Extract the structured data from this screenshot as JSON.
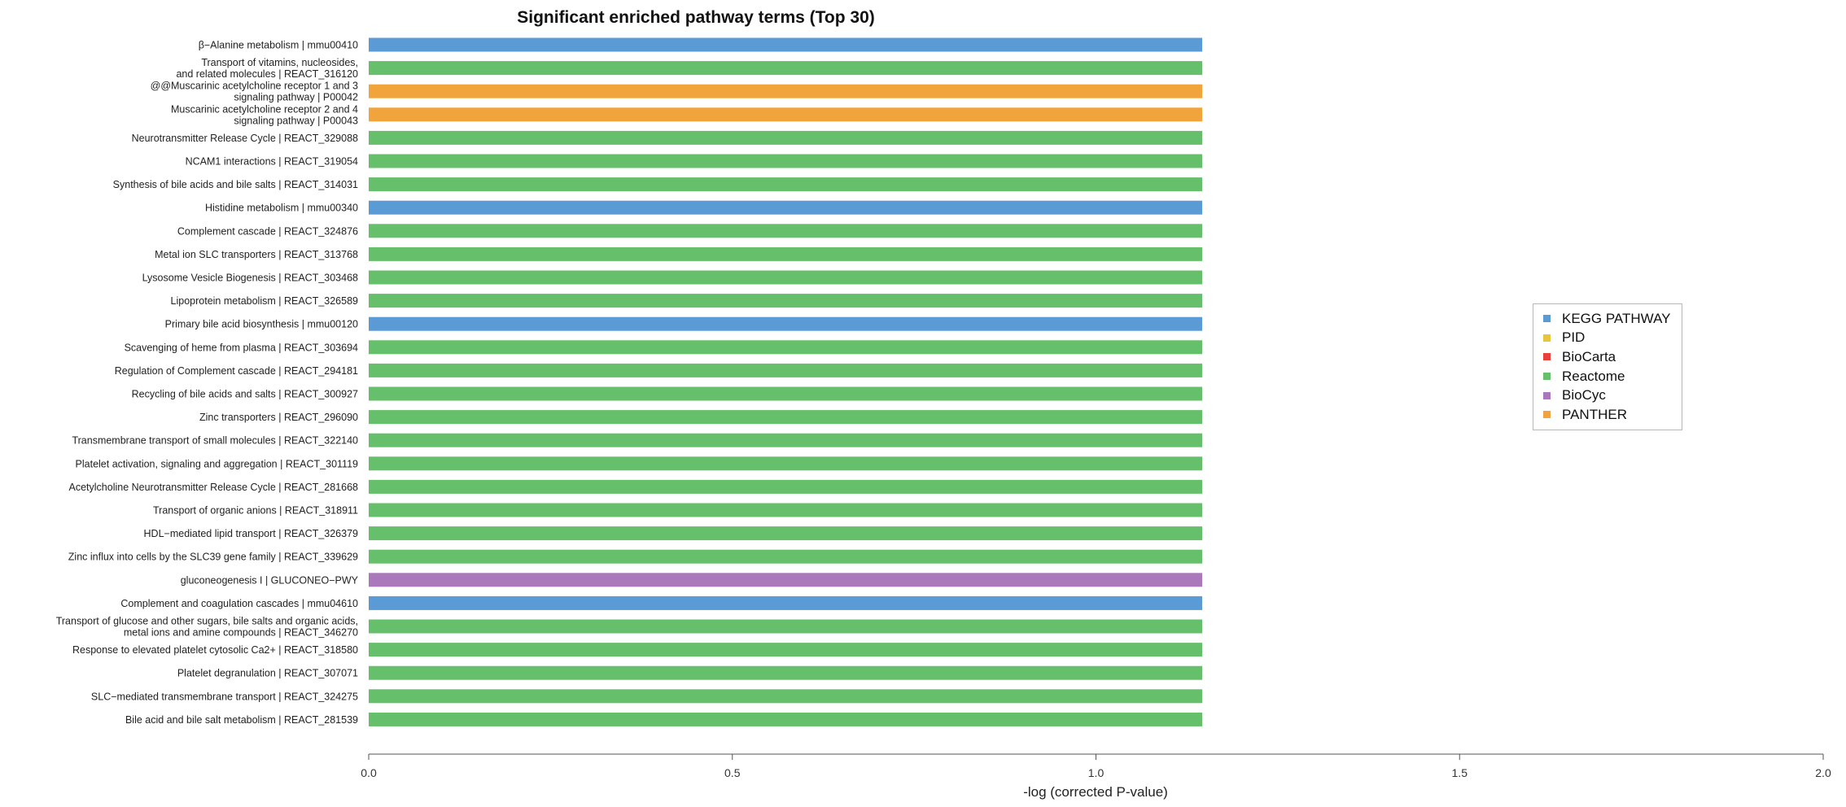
{
  "chart_data": {
    "type": "bar",
    "orientation": "horizontal",
    "title": "Significant enriched pathway terms (Top 30)",
    "xlabel": "-log (corrected P-value)",
    "ylabel": "",
    "xlim": [
      0,
      2.0
    ],
    "xticks": [
      "0.0",
      "0.5",
      "1.0",
      "1.5",
      "2.0"
    ],
    "grid": false,
    "legend_position": "right",
    "sources": [
      {
        "name": "KEGG PATHWAY",
        "color": "#5b9bd5"
      },
      {
        "name": "PID",
        "color": "#e8c53a"
      },
      {
        "name": "BioCarta",
        "color": "#e8413c"
      },
      {
        "name": "Reactome",
        "color": "#66bf6a"
      },
      {
        "name": "BioCyc",
        "color": "#a979bb"
      },
      {
        "name": "PANTHER",
        "color": "#f2a43c"
      }
    ],
    "bars": [
      {
        "label": [
          "β−Alanine metabolism | mmu00410"
        ],
        "source": "KEGG PATHWAY",
        "value": 1.146
      },
      {
        "label": [
          "Transport of vitamins, nucleosides,",
          "and related molecules | REACT_316120"
        ],
        "source": "Reactome",
        "value": 1.146
      },
      {
        "label": [
          "@@Muscarinic acetylcholine receptor 1 and 3",
          "signaling pathway | P00042"
        ],
        "source": "PANTHER",
        "value": 1.146
      },
      {
        "label": [
          "Muscarinic acetylcholine receptor 2 and 4",
          "signaling pathway | P00043"
        ],
        "source": "PANTHER",
        "value": 1.146
      },
      {
        "label": [
          "Neurotransmitter Release Cycle | REACT_329088"
        ],
        "source": "Reactome",
        "value": 1.146
      },
      {
        "label": [
          "NCAM1 interactions | REACT_319054"
        ],
        "source": "Reactome",
        "value": 1.146
      },
      {
        "label": [
          "Synthesis of bile acids and bile salts | REACT_314031"
        ],
        "source": "Reactome",
        "value": 1.146
      },
      {
        "label": [
          "Histidine metabolism | mmu00340"
        ],
        "source": "KEGG PATHWAY",
        "value": 1.146
      },
      {
        "label": [
          "Complement cascade | REACT_324876"
        ],
        "source": "Reactome",
        "value": 1.146
      },
      {
        "label": [
          "Metal ion SLC transporters | REACT_313768"
        ],
        "source": "Reactome",
        "value": 1.146
      },
      {
        "label": [
          "Lysosome Vesicle Biogenesis | REACT_303468"
        ],
        "source": "Reactome",
        "value": 1.146
      },
      {
        "label": [
          "Lipoprotein metabolism | REACT_326589"
        ],
        "source": "Reactome",
        "value": 1.146
      },
      {
        "label": [
          "Primary bile acid biosynthesis | mmu00120"
        ],
        "source": "KEGG PATHWAY",
        "value": 1.146
      },
      {
        "label": [
          "Scavenging of heme from plasma | REACT_303694"
        ],
        "source": "Reactome",
        "value": 1.146
      },
      {
        "label": [
          "Regulation of Complement cascade | REACT_294181"
        ],
        "source": "Reactome",
        "value": 1.146
      },
      {
        "label": [
          "Recycling of bile acids and salts | REACT_300927"
        ],
        "source": "Reactome",
        "value": 1.146
      },
      {
        "label": [
          "Zinc transporters | REACT_296090"
        ],
        "source": "Reactome",
        "value": 1.146
      },
      {
        "label": [
          "Transmembrane transport of small molecules | REACT_322140"
        ],
        "source": "Reactome",
        "value": 1.146
      },
      {
        "label": [
          "Platelet activation, signaling and aggregation | REACT_301119"
        ],
        "source": "Reactome",
        "value": 1.146
      },
      {
        "label": [
          "Acetylcholine Neurotransmitter Release Cycle | REACT_281668"
        ],
        "source": "Reactome",
        "value": 1.146
      },
      {
        "label": [
          "Transport of organic anions | REACT_318911"
        ],
        "source": "Reactome",
        "value": 1.146
      },
      {
        "label": [
          "HDL−mediated lipid transport | REACT_326379"
        ],
        "source": "Reactome",
        "value": 1.146
      },
      {
        "label": [
          "Zinc influx into cells by the SLC39 gene family | REACT_339629"
        ],
        "source": "Reactome",
        "value": 1.146
      },
      {
        "label": [
          "gluconeogenesis I | GLUCONEO−PWY"
        ],
        "source": "BioCyc",
        "value": 1.146
      },
      {
        "label": [
          "Complement and coagulation cascades | mmu04610"
        ],
        "source": "KEGG PATHWAY",
        "value": 1.146
      },
      {
        "label": [
          "Transport of glucose and other sugars, bile salts and organic acids,",
          "metal ions and amine compounds | REACT_346270"
        ],
        "source": "Reactome",
        "value": 1.146
      },
      {
        "label": [
          "Response to elevated platelet cytosolic Ca2+ | REACT_318580"
        ],
        "source": "Reactome",
        "value": 1.146
      },
      {
        "label": [
          "Platelet degranulation  | REACT_307071"
        ],
        "source": "Reactome",
        "value": 1.146
      },
      {
        "label": [
          "SLC−mediated transmembrane transport | REACT_324275"
        ],
        "source": "Reactome",
        "value": 1.146
      },
      {
        "label": [
          "Bile acid and bile salt metabolism | REACT_281539"
        ],
        "source": "Reactome",
        "value": 1.146
      }
    ]
  }
}
